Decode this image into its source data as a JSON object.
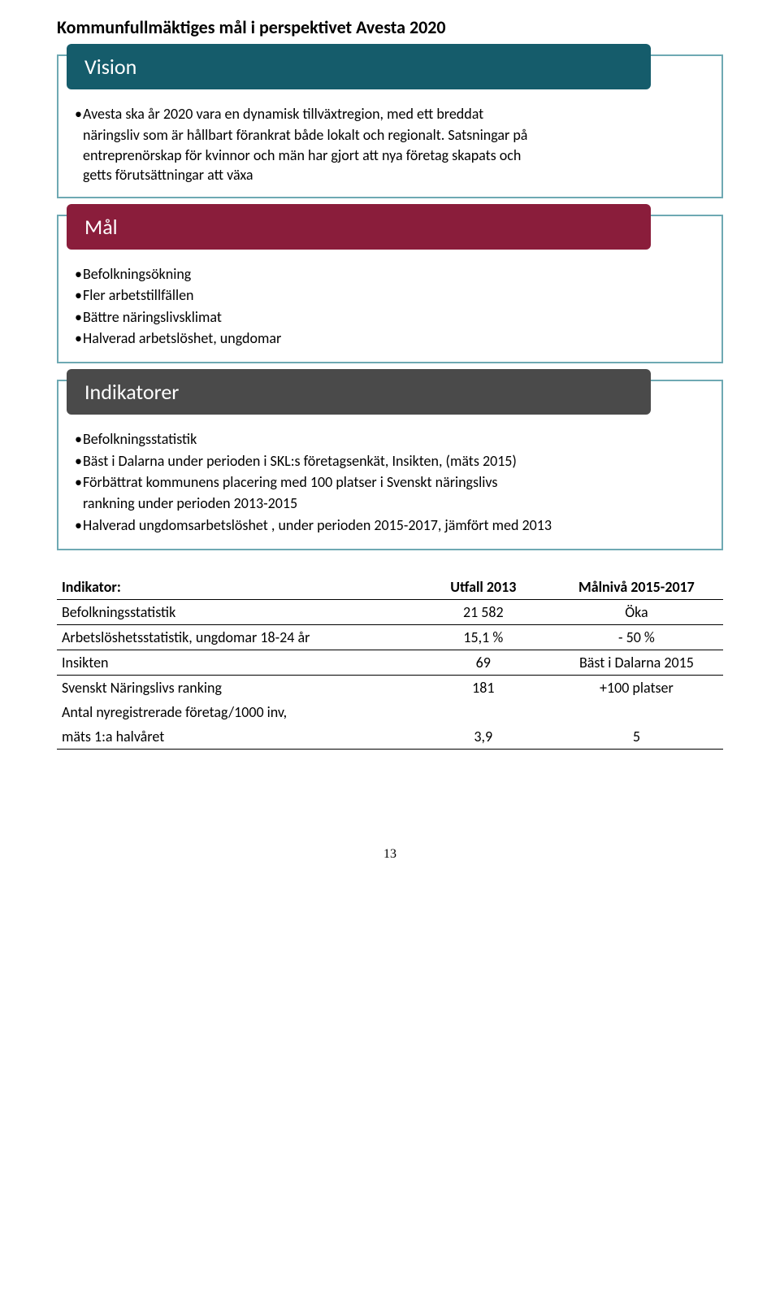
{
  "title": "Kommunfullmäktiges mål i perspektivet Avesta 2020",
  "vision": {
    "header": "Vision",
    "header_bg": "#155c6b",
    "border_color": "#6ea9b3",
    "body": [
      {
        "bullet": true,
        "text": "Avesta ska år 2020  vara en dynamisk tillväxtregion, med ett breddat"
      },
      {
        "bullet": false,
        "text": "näringsliv som är hållbart förankrat både lokalt och regionalt. Satsningar på"
      },
      {
        "bullet": false,
        "text": "entreprenörskap för kvinnor och män har gjort att nya företag skapats och"
      },
      {
        "bullet": false,
        "text": "getts förutsättningar att växa"
      }
    ]
  },
  "mal": {
    "header": "Mål",
    "header_bg": "#8a1d3b",
    "border_color": "#6ea9b3",
    "body": [
      {
        "bullet": true,
        "text": "Befolkningsökning"
      },
      {
        "bullet": true,
        "text": "Fler arbetstillfällen"
      },
      {
        "bullet": true,
        "text": "Bättre näringslivsklimat"
      },
      {
        "bullet": true,
        "text": "Halverad arbetslöshet, ungdomar"
      }
    ]
  },
  "indikatorer": {
    "header": "Indikatorer",
    "header_bg": "#4a4a4a",
    "border_color": "#6ea9b3",
    "body": [
      {
        "bullet": true,
        "text": "Befolkningsstatistik"
      },
      {
        "bullet": true,
        "text": "Bäst i Dalarna under perioden i SKL:s företagsenkät, Insikten, (mäts 2015)"
      },
      {
        "bullet": true,
        "text": "Förbättrat kommunens placering med 100 platser i Svenskt näringslivs"
      },
      {
        "bullet": false,
        "text": "rankning under perioden 2013-2015"
      },
      {
        "bullet": true,
        "text": "Halverad ungdomsarbetslöshet , under perioden 2015-2017, jämfört med 2013"
      }
    ]
  },
  "table": {
    "columns": [
      {
        "label": "Indikator:",
        "align": "left",
        "width": "54%"
      },
      {
        "label": "Utfall 2013",
        "align": "center",
        "width": "20%"
      },
      {
        "label": "Målnivå 2015-2017",
        "align": "center",
        "width": "26%"
      }
    ],
    "rows": [
      {
        "underline": true,
        "cells": [
          "Befolkningsstatistik",
          "21 582",
          "Öka"
        ]
      },
      {
        "underline": true,
        "cells": [
          "Arbetslöshetsstatistik, ungdomar 18-24 år",
          "15,1 %",
          "- 50 %"
        ]
      },
      {
        "underline": true,
        "cells": [
          "Insikten",
          "69",
          "Bäst i Dalarna 2015"
        ]
      },
      {
        "underline": false,
        "cells": [
          "Svenskt Näringslivs ranking",
          "181",
          "+100 platser"
        ]
      },
      {
        "underline": false,
        "cells": [
          "Antal nyregistrerade företag/1000 inv,",
          "",
          ""
        ]
      },
      {
        "underline": true,
        "cells": [
          "mäts 1:a halvåret",
          "3,9",
          "5"
        ]
      }
    ]
  },
  "page_number": "13"
}
